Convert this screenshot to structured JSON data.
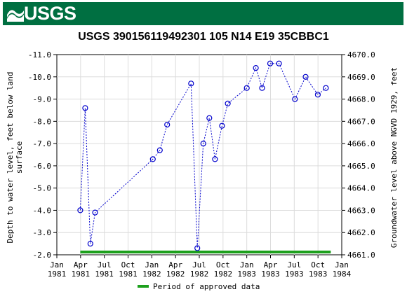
{
  "header": {
    "logo_text": "USGS"
  },
  "chart_data": {
    "type": "scatter",
    "title": "USGS 390156119492301 105  N14 E19 35CBBC1",
    "ylabel_left": "Depth to water level, feet below land surface",
    "ylabel_right": "Groundwater level above NGVD 1929, feet",
    "ylim_left": [
      -11.0,
      -2.0
    ],
    "ylim_right": [
      4661.0,
      4670.0
    ],
    "yticks_left": [
      "-11.0",
      "-10.0",
      "-9.0",
      "-8.0",
      "-7.0",
      "-6.0",
      "-5.0",
      "-4.0",
      "-3.0",
      "-2.0"
    ],
    "yticks_right": [
      "4670.0",
      "4669.0",
      "4668.0",
      "4667.0",
      "4666.0",
      "4665.0",
      "4664.0",
      "4663.0",
      "4662.0",
      "4661.0"
    ],
    "xticks": [
      {
        "m": "Jan",
        "y": "1981"
      },
      {
        "m": "Apr",
        "y": "1981"
      },
      {
        "m": "Jul",
        "y": "1981"
      },
      {
        "m": "Oct",
        "y": "1981"
      },
      {
        "m": "Jan",
        "y": "1982"
      },
      {
        "m": "Apr",
        "y": "1982"
      },
      {
        "m": "Jul",
        "y": "1982"
      },
      {
        "m": "Oct",
        "y": "1982"
      },
      {
        "m": "Jan",
        "y": "1983"
      },
      {
        "m": "Apr",
        "y": "1983"
      },
      {
        "m": "Jul",
        "y": "1983"
      },
      {
        "m": "Oct",
        "y": "1983"
      },
      {
        "m": "Jan",
        "y": "1984"
      }
    ],
    "x_start": "1981-01-01",
    "x_end": "1984-01-01",
    "series": [
      {
        "x": [
          "1981-04-01",
          "1981-04-20",
          "1981-05-10",
          "1981-05-28",
          "1982-01-05",
          "1982-02-01",
          "1982-03-01",
          "1982-06-01",
          "1982-06-25",
          "1982-07-18",
          "1982-08-10",
          "1982-09-01",
          "1982-09-28",
          "1982-10-20",
          "1983-01-01",
          "1983-02-05",
          "1983-03-01",
          "1983-04-01",
          "1983-05-05",
          "1983-07-05",
          "1983-08-15",
          "1983-10-01",
          "1983-11-01"
        ],
        "values": [
          -4.0,
          -8.6,
          -2.5,
          -3.9,
          -6.3,
          -6.7,
          -7.85,
          -9.7,
          -2.3,
          -7.0,
          -8.15,
          -6.3,
          -7.8,
          -8.8,
          -9.5,
          -10.4,
          -9.5,
          -10.6,
          -10.6,
          -9.0,
          -10.0,
          -9.2,
          -9.5
        ]
      }
    ],
    "approved_period": {
      "start": "1981-04-01",
      "end": "1983-11-20",
      "color": "#1da01d"
    },
    "legend": {
      "label": "Period of approved data",
      "placement": "bottom-center"
    }
  }
}
